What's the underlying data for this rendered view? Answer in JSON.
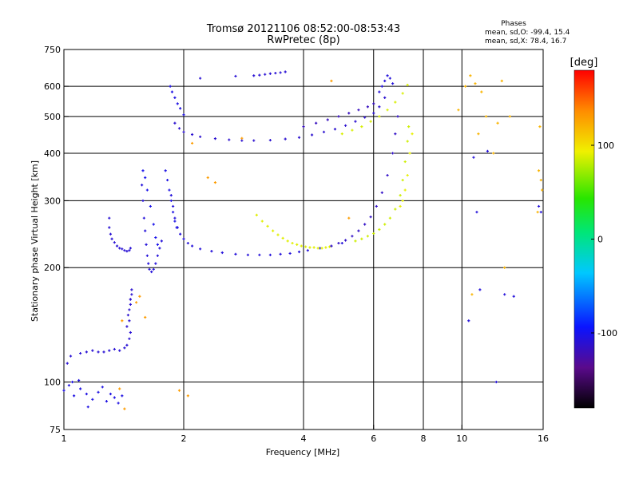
{
  "chart_data": {
    "type": "scatter",
    "title": "Tromsø 20121106 08:52:00-08:53:43",
    "subtitle": "RwPretec (8p)",
    "xlabel": "Frequency [MHz]",
    "ylabel": "Stationary phase Virtual Height [km]",
    "x_scale": "log",
    "y_scale": "log",
    "xlim": [
      1,
      16
    ],
    "ylim": [
      75,
      750
    ],
    "x_ticks": [
      1,
      2,
      4,
      6,
      8,
      10,
      16
    ],
    "y_ticks": [
      75,
      100,
      200,
      300,
      400,
      500,
      600,
      750
    ],
    "x_grid": [
      2,
      4,
      6,
      8,
      10
    ],
    "y_grid": [
      100,
      200,
      300,
      400,
      500,
      600
    ],
    "grid": true,
    "phases": {
      "heading": "Phases",
      "line_o": "mean, sd,O:  -99.4, 15.4",
      "line_x": "mean, sd,X:  78.4, 16.7"
    },
    "colorbar": {
      "label": "[deg]",
      "min": -180,
      "max": 180,
      "ticks": [
        100,
        0,
        -100
      ],
      "position": "right"
    },
    "series": [
      {
        "x": [
          1.0,
          1.03,
          1.06,
          1.1,
          1.14,
          1.18,
          1.22,
          1.25,
          1.28,
          1.31,
          1.34,
          1.37,
          1.4,
          1.05,
          1.09,
          1.15
        ],
        "y": [
          95,
          98,
          92,
          96,
          93,
          90,
          94,
          97,
          89,
          93,
          91,
          88,
          92,
          100,
          101,
          86
        ],
        "phase": -105
      },
      {
        "x": [
          1.02,
          1.04,
          1.1,
          1.14,
          1.18,
          1.22,
          1.26,
          1.3,
          1.34,
          1.38,
          1.42,
          1.44,
          1.46,
          1.47
        ],
        "y": [
          112,
          117,
          119,
          120,
          121,
          120,
          120,
          121,
          122,
          121,
          123,
          125,
          130,
          135
        ],
        "phase": -110
      },
      {
        "x": [
          1.44,
          1.45,
          1.46,
          1.47,
          1.47,
          1.48,
          1.48,
          1.47,
          1.46
        ],
        "y": [
          140,
          150,
          155,
          160,
          165,
          170,
          175,
          165,
          145
        ],
        "phase": -112
      },
      {
        "x": [
          1.3,
          1.3,
          1.31,
          1.32,
          1.34,
          1.36,
          1.38,
          1.4,
          1.42,
          1.44,
          1.46,
          1.47
        ],
        "y": [
          270,
          255,
          245,
          238,
          233,
          228,
          225,
          224,
          222,
          221,
          222,
          225
        ],
        "phase": -110
      },
      {
        "x": [
          1.57,
          1.58,
          1.59,
          1.6,
          1.61,
          1.62,
          1.63,
          1.64,
          1.66,
          1.68,
          1.7,
          1.72,
          1.74,
          1.76
        ],
        "y": [
          330,
          300,
          270,
          250,
          230,
          215,
          205,
          198,
          195,
          198,
          205,
          215,
          225,
          235
        ],
        "phase": -108
      },
      {
        "x": [
          1.58,
          1.6,
          1.62,
          1.65,
          1.68,
          1.7,
          1.72
        ],
        "y": [
          360,
          345,
          320,
          290,
          260,
          240,
          230
        ],
        "phase": -102
      },
      {
        "x": [
          1.86,
          1.88,
          1.9,
          1.93,
          1.96,
          2.0,
          2.05,
          2.1,
          2.2,
          2.35,
          2.5,
          2.7,
          2.9,
          3.1,
          3.3,
          3.5,
          3.7,
          3.9,
          4.1,
          4.4,
          4.7,
          5.0
        ],
        "y": [
          310,
          290,
          270,
          255,
          245,
          238,
          232,
          228,
          224,
          221,
          219,
          217,
          216,
          216,
          216,
          217,
          218,
          220,
          222,
          225,
          228,
          232
        ],
        "phase": -108
      },
      {
        "x": [
          1.8,
          1.82,
          1.84,
          1.86,
          1.88,
          1.9,
          1.92
        ],
        "y": [
          360,
          340,
          320,
          300,
          280,
          265,
          255
        ],
        "phase": -104
      },
      {
        "x": [
          3.05,
          3.15,
          3.25,
          3.35,
          3.45,
          3.55,
          3.65,
          3.75,
          3.85,
          3.95,
          4.05,
          4.15,
          4.25,
          4.35,
          4.45,
          4.55,
          4.65
        ],
        "y": [
          275,
          265,
          257,
          250,
          244,
          239,
          235,
          232,
          230,
          228,
          227,
          226,
          226,
          225,
          225,
          226,
          227
        ],
        "phase": 90
      },
      {
        "x": [
          4.7,
          4.9,
          5.1,
          5.3,
          5.5,
          5.7,
          5.9,
          6.1,
          6.3,
          6.5,
          6.7,
          6.8,
          6.9
        ],
        "y": [
          228,
          232,
          236,
          242,
          250,
          260,
          272,
          290,
          315,
          350,
          400,
          450,
          500
        ],
        "phase": -115
      },
      {
        "x": [
          5.4,
          5.6,
          5.8,
          6.0,
          6.2,
          6.4,
          6.6,
          6.8,
          7.0,
          7.1,
          7.2,
          7.3,
          7.35
        ],
        "y": [
          235,
          238,
          242,
          246,
          252,
          260,
          270,
          285,
          310,
          340,
          380,
          430,
          470
        ],
        "phase": 85
      },
      {
        "x": [
          7.0,
          7.1,
          7.2,
          7.3,
          7.4,
          7.5
        ],
        "y": [
          290,
          300,
          320,
          350,
          400,
          450
        ],
        "phase": 92
      },
      {
        "x": [
          1.9,
          1.95,
          2.0,
          2.1,
          2.2,
          2.4,
          2.6,
          2.8,
          3.0,
          3.3,
          3.6,
          3.9,
          4.2,
          4.5,
          4.8,
          5.1,
          5.4,
          5.7,
          6.0,
          6.2,
          6.4
        ],
        "y": [
          480,
          465,
          455,
          448,
          442,
          437,
          434,
          432,
          432,
          433,
          436,
          440,
          447,
          455,
          463,
          473,
          485,
          497,
          510,
          530,
          560
        ],
        "phase": -112
      },
      {
        "x": [
          1.85,
          1.87,
          1.9,
          1.93,
          1.96,
          2.0
        ],
        "y": [
          600,
          580,
          560,
          540,
          525,
          505
        ],
        "phase": -105
      },
      {
        "x": [
          4.0,
          4.3,
          4.6,
          4.9,
          5.2,
          5.5,
          5.8,
          6.0
        ],
        "y": [
          470,
          480,
          490,
          500,
          510,
          520,
          530,
          540
        ],
        "phase": -118
      },
      {
        "x": [
          5.0,
          5.3,
          5.6,
          5.9,
          6.2,
          6.5,
          6.8,
          7.1,
          7.3
        ],
        "y": [
          450,
          460,
          470,
          485,
          500,
          520,
          545,
          575,
          605
        ],
        "phase": 88
      },
      {
        "x": [
          6.2,
          6.3,
          6.4,
          6.5,
          6.6,
          6.7
        ],
        "y": [
          580,
          600,
          620,
          640,
          630,
          610
        ],
        "phase": -108
      },
      {
        "x": [
          3.0,
          3.1,
          3.2,
          3.3,
          3.4,
          3.5,
          3.6
        ],
        "y": [
          640,
          642,
          645,
          648,
          650,
          652,
          655
        ],
        "phase": -110
      },
      {
        "x": [
          2.2,
          2.7
        ],
        "y": [
          630,
          638
        ],
        "phase": -110
      },
      {
        "x": [
          2.3,
          2.4,
          4.7,
          5.2,
          2.1,
          2.8,
          1.95,
          2.05,
          1.4,
          1.52,
          1.55,
          1.6,
          1.38,
          1.42
        ],
        "y": [
          345,
          335,
          620,
          270,
          425,
          438,
          95,
          92,
          145,
          162,
          168,
          148,
          96,
          85
        ],
        "phase": 130
      },
      {
        "x": [
          10.5,
          10.8,
          11.2,
          11.5,
          12.3,
          12.6,
          13.2,
          15.6,
          15.8,
          15.9,
          10.2,
          11.0,
          12.0,
          12.8,
          15.7,
          9.8,
          10.6,
          15.5
        ],
        "y": [
          640,
          610,
          580,
          500,
          480,
          620,
          500,
          360,
          340,
          320,
          600,
          450,
          400,
          200,
          470,
          520,
          170,
          280
        ],
        "phase": 120
      },
      {
        "x": [
          10.7,
          10.9,
          11.6,
          12.8,
          13.5,
          15.6,
          15.8,
          10.4,
          12.2,
          11.1
        ],
        "y": [
          390,
          280,
          405,
          170,
          168,
          290,
          280,
          145,
          100,
          175
        ],
        "phase": -108
      }
    ]
  }
}
